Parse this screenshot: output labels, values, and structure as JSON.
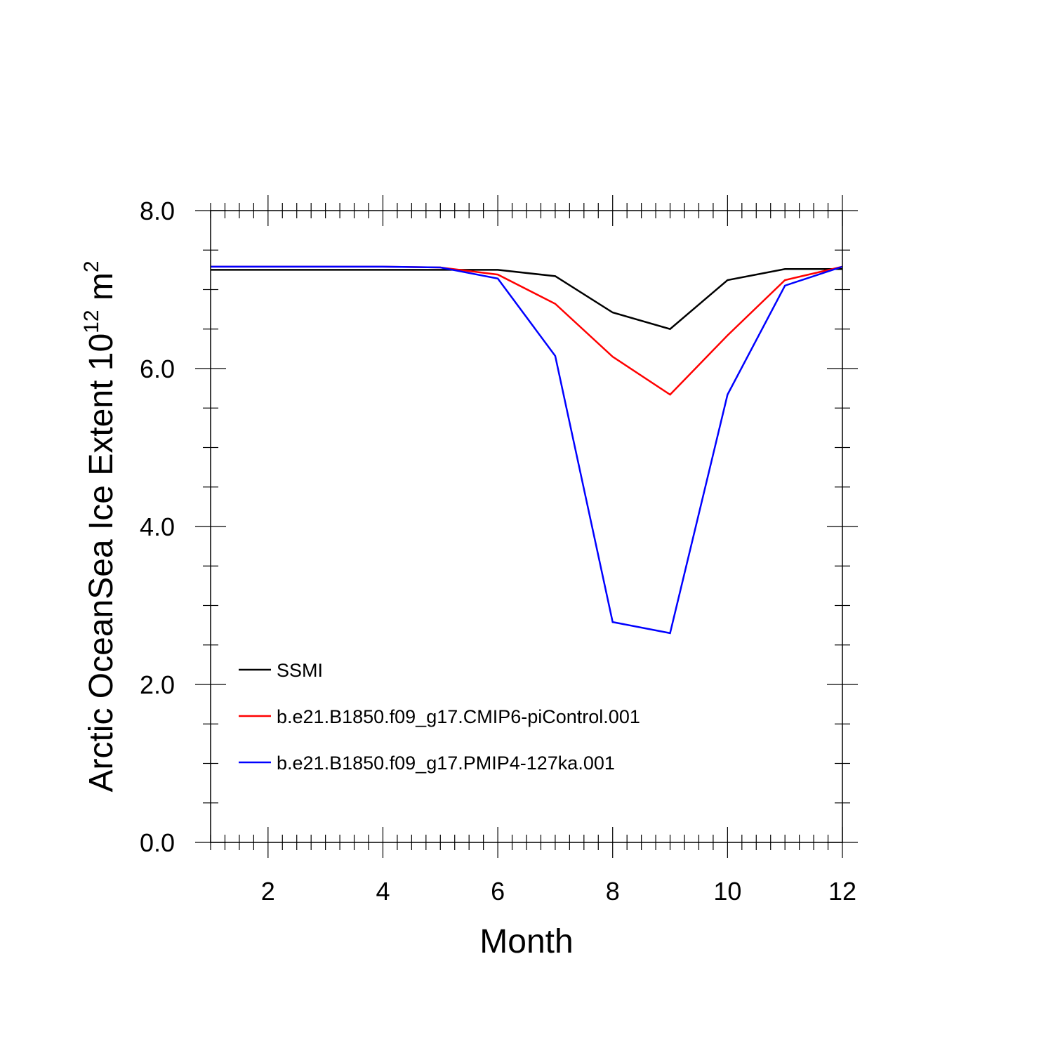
{
  "chart_data": {
    "type": "line",
    "xlabel": "Month",
    "ylabel_parts": {
      "pre": "Arctic OceanSea Ice Extent 10",
      "sup1": "12",
      "mid": " m",
      "sup2": "2"
    },
    "xlim": [
      1,
      12
    ],
    "ylim": [
      0,
      8
    ],
    "x_ticks": [
      2,
      4,
      6,
      8,
      10,
      12
    ],
    "x_tick_labels": [
      "2",
      "4",
      "6",
      "8",
      "10",
      "12"
    ],
    "y_ticks": [
      0,
      2,
      4,
      6,
      8
    ],
    "y_tick_labels": [
      "0.0",
      "2.0",
      "4.0",
      "6.0",
      "8.0"
    ],
    "x": [
      1,
      2,
      3,
      4,
      5,
      6,
      7,
      8,
      9,
      10,
      11,
      12
    ],
    "series": [
      {
        "name": "SSMI",
        "color": "#000000",
        "values": [
          7.25,
          7.25,
          7.25,
          7.25,
          7.25,
          7.25,
          7.17,
          6.71,
          6.5,
          7.12,
          7.26,
          7.26
        ]
      },
      {
        "name": "b.e21.B1850.f09_g17.CMIP6-piControl.001",
        "color": "#ff0000",
        "values": [
          7.29,
          7.29,
          7.29,
          7.29,
          7.28,
          7.19,
          6.82,
          6.15,
          5.67,
          6.42,
          7.12,
          7.29
        ]
      },
      {
        "name": "b.e21.B1850.f09_g17.PMIP4-127ka.001",
        "color": "#0000ff",
        "values": [
          7.29,
          7.29,
          7.29,
          7.29,
          7.28,
          7.14,
          6.16,
          2.79,
          2.65,
          5.67,
          7.05,
          7.29
        ]
      }
    ],
    "legend_position": "bottom-left",
    "grid": false
  }
}
